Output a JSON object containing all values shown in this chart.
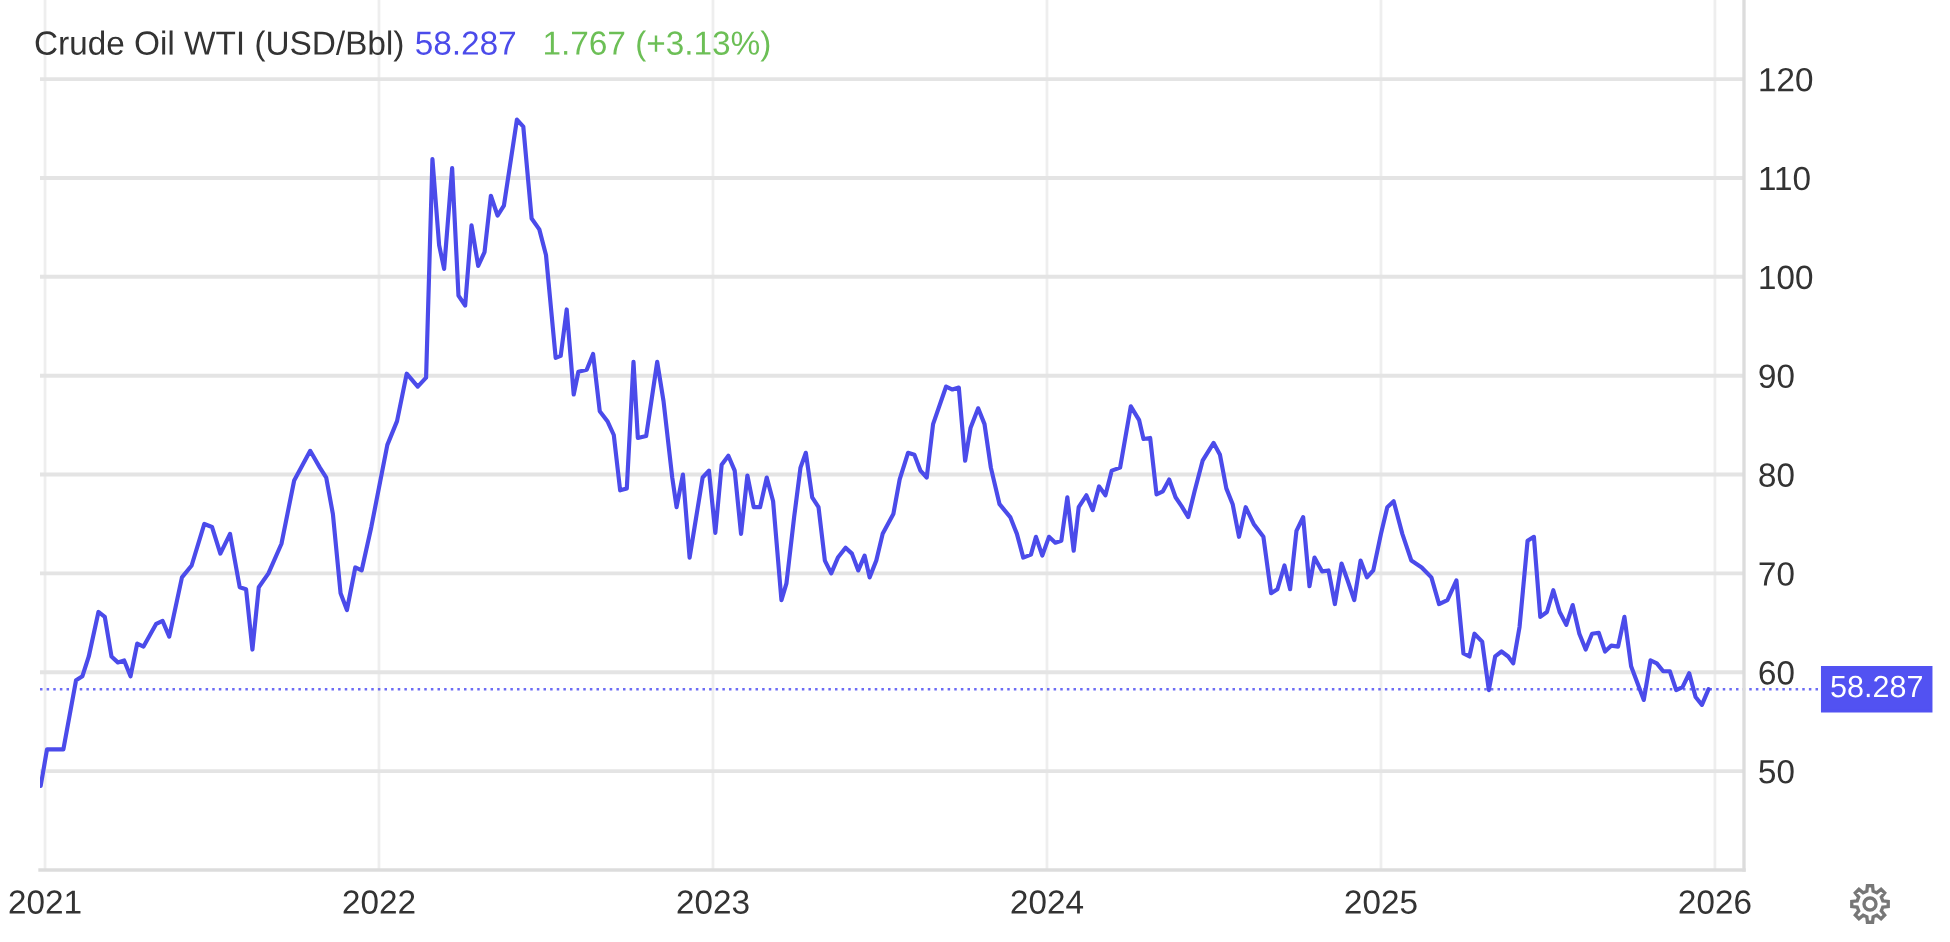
{
  "chart_data": {
    "type": "line",
    "title": "Crude Oil WTI (USD/Bbl)",
    "annotations": [
      "58.287",
      "1.767 (+3.13%)"
    ],
    "x": [
      2020.987,
      2021.006,
      2021.055,
      2021.093,
      2021.112,
      2021.131,
      2021.16,
      2021.179,
      2021.199,
      2021.218,
      2021.237,
      2021.256,
      2021.276,
      2021.295,
      2021.333,
      2021.352,
      2021.372,
      2021.41,
      2021.439,
      2021.477,
      2021.5,
      2021.525,
      2021.554,
      2021.583,
      2021.602,
      2021.621,
      2021.64,
      2021.669,
      2021.708,
      2021.746,
      2021.794,
      2021.823,
      2021.842,
      2021.862,
      2021.885,
      2021.904,
      2021.929,
      2021.948,
      2021.977,
      2022.025,
      2022.054,
      2022.083,
      2022.116,
      2022.141,
      2022.16,
      2022.18,
      2022.195,
      2022.219,
      2022.238,
      2022.258,
      2022.277,
      2022.297,
      2022.316,
      2022.335,
      2022.355,
      2022.374,
      2022.413,
      2022.432,
      2022.457,
      2022.48,
      2022.5,
      2022.529,
      2022.544,
      2022.562,
      2022.583,
      2022.597,
      2022.622,
      2022.641,
      2022.661,
      2022.684,
      2022.703,
      2022.722,
      2022.742,
      2022.762,
      2022.775,
      2022.8,
      2022.833,
      2022.852,
      2022.878,
      2022.891,
      2022.91,
      2022.93,
      2022.945,
      2022.969,
      2022.988,
      2023.007,
      2023.026,
      2023.046,
      2023.065,
      2023.084,
      2023.103,
      2023.122,
      2023.141,
      2023.161,
      2023.18,
      2023.205,
      2023.22,
      2023.243,
      2023.262,
      2023.278,
      2023.297,
      2023.316,
      2023.335,
      2023.354,
      2023.374,
      2023.397,
      2023.416,
      2023.435,
      2023.454,
      2023.469,
      2023.489,
      2023.508,
      2023.54,
      2023.559,
      2023.584,
      2023.603,
      2023.621,
      2023.64,
      2023.659,
      2023.698,
      2023.717,
      2023.736,
      2023.755,
      2023.771,
      2023.794,
      2023.813,
      2023.832,
      2023.858,
      2023.89,
      2023.91,
      2023.929,
      2023.952,
      2023.967,
      2023.986,
      2024.006,
      2024.025,
      2024.043,
      2024.061,
      2024.08,
      2024.095,
      2024.118,
      2024.137,
      2024.156,
      2024.175,
      2024.194,
      2024.219,
      2024.251,
      2024.276,
      2024.289,
      2024.309,
      2024.328,
      2024.347,
      2024.366,
      2024.385,
      2024.403,
      2024.423,
      2024.442,
      2024.466,
      2024.499,
      2024.518,
      2024.537,
      2024.556,
      2024.575,
      2024.595,
      2024.619,
      2024.648,
      2024.671,
      2024.69,
      2024.711,
      2024.728,
      2024.747,
      2024.767,
      2024.786,
      2024.801,
      2024.824,
      2024.843,
      2024.862,
      2024.882,
      2024.901,
      2024.92,
      2024.939,
      2024.958,
      2024.977,
      2025.0,
      2025.019,
      2025.038,
      2025.064,
      2025.091,
      2025.122,
      2025.151,
      2025.174,
      2025.199,
      2025.226,
      2025.247,
      2025.265,
      2025.28,
      2025.303,
      2025.323,
      2025.342,
      2025.361,
      2025.381,
      2025.396,
      2025.415,
      2025.439,
      2025.458,
      2025.477,
      2025.497,
      2025.516,
      2025.535,
      2025.555,
      2025.574,
      2025.594,
      2025.613,
      2025.632,
      2025.652,
      2025.671,
      2025.69,
      2025.71,
      2025.729,
      2025.749,
      2025.787,
      2025.807,
      2025.826,
      2025.845,
      2025.865,
      2025.884,
      2025.903,
      2025.923,
      2025.942,
      2025.961,
      2025.981
    ],
    "series": [
      {
        "color": "#4b4bea",
        "values": [
          48.5,
          52.2,
          52.2,
          59.2,
          59.6,
          61.6,
          66.1,
          65.6,
          61.6,
          61.0,
          61.2,
          59.6,
          62.9,
          62.6,
          64.9,
          65.2,
          63.6,
          69.6,
          70.8,
          75.0,
          74.7,
          72.0,
          74.0,
          68.6,
          68.4,
          62.3,
          68.6,
          70.0,
          73.0,
          79.4,
          82.4,
          80.7,
          79.7,
          76.0,
          68.0,
          66.3,
          70.6,
          70.3,
          74.7,
          83.0,
          85.4,
          90.2,
          88.9,
          89.8,
          111.9,
          103.2,
          100.8,
          111.0,
          98.1,
          97.1,
          105.2,
          101.1,
          102.5,
          108.2,
          106.2,
          107.2,
          115.9,
          115.2,
          105.9,
          104.8,
          102.2,
          91.8,
          92.0,
          96.7,
          88.1,
          90.4,
          90.6,
          92.2,
          86.4,
          85.4,
          84.0,
          78.4,
          78.6,
          91.4,
          83.7,
          83.9,
          91.4,
          87.4,
          79.7,
          76.7,
          80.0,
          71.6,
          74.7,
          79.7,
          80.4,
          74.1,
          81.0,
          81.9,
          80.4,
          74.0,
          79.9,
          76.7,
          76.7,
          79.7,
          77.3,
          67.3,
          69.0,
          75.7,
          80.7,
          82.2,
          77.7,
          76.7,
          71.3,
          70.0,
          71.6,
          72.6,
          72.0,
          70.3,
          71.8,
          69.6,
          71.3,
          74.0,
          76.0,
          79.5,
          82.2,
          82.0,
          80.4,
          79.7,
          85.1,
          88.9,
          88.6,
          88.8,
          81.4,
          84.7,
          86.7,
          85.1,
          80.7,
          77.0,
          75.7,
          74.0,
          71.6,
          71.9,
          73.7,
          71.8,
          73.7,
          73.1,
          73.3,
          77.7,
          72.3,
          76.7,
          77.9,
          76.4,
          78.8,
          77.9,
          80.4,
          80.7,
          86.9,
          85.5,
          83.6,
          83.7,
          78.0,
          78.3,
          79.5,
          77.7,
          76.8,
          75.7,
          78.3,
          81.4,
          83.2,
          82.0,
          78.6,
          77.0,
          73.7,
          76.7,
          75.0,
          73.7,
          68.0,
          68.4,
          70.8,
          68.4,
          74.3,
          75.7,
          68.7,
          71.6,
          70.2,
          70.3,
          66.9,
          71.0,
          69.2,
          67.3,
          71.3,
          69.6,
          70.3,
          74.0,
          76.7,
          77.3,
          74.0,
          71.3,
          70.6,
          69.6,
          66.9,
          67.3,
          69.3,
          61.9,
          61.6,
          63.9,
          63.1,
          58.2,
          61.6,
          62.1,
          61.6,
          60.9,
          64.6,
          73.3,
          73.7,
          65.6,
          66.1,
          68.3,
          66.1,
          64.8,
          66.8,
          63.9,
          62.3,
          63.9,
          64.0,
          62.1,
          62.7,
          62.6,
          65.6,
          60.6,
          57.2,
          61.2,
          60.9,
          60.1,
          60.1,
          58.2,
          58.5,
          59.9,
          57.5,
          56.7,
          58.3
        ]
      }
    ],
    "xlim": [
      2020.985,
      2026.087
    ],
    "xticks": [
      2021,
      2022,
      2023,
      2024,
      2025,
      2026
    ],
    "ylim": [
      40,
      128
    ],
    "yticks": [
      50,
      60,
      70,
      80,
      90,
      100,
      110,
      120
    ],
    "grid": true,
    "ref_lines": [
      {
        "axis": "y",
        "value": 58.287,
        "label": "58.287",
        "color": "#5252f2",
        "line_style": "dotted"
      }
    ]
  }
}
